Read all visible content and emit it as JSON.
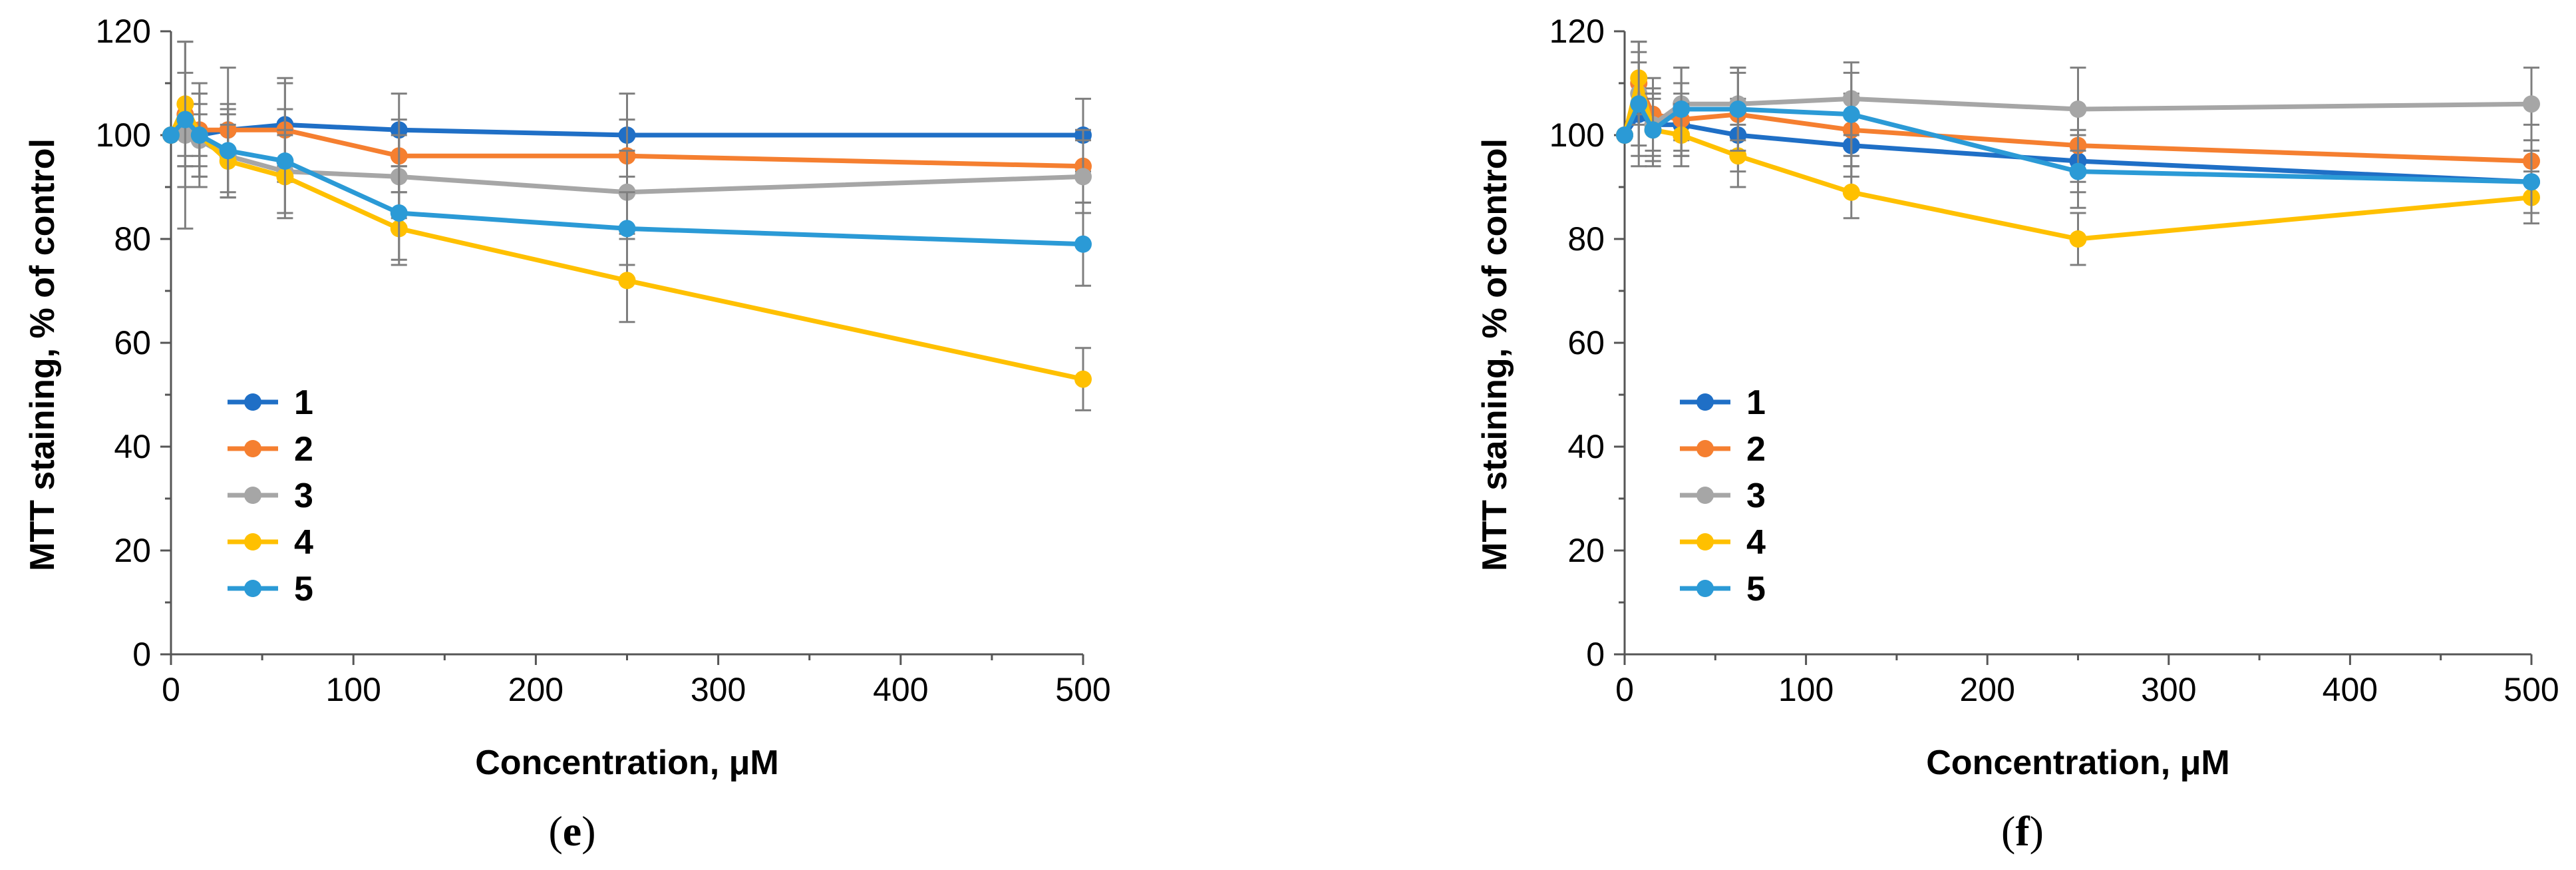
{
  "chart_data": [
    {
      "type": "line",
      "panel_label": "(e)",
      "panel_letter": "e",
      "xlabel": "Concentration, μM",
      "ylabel": "MTT staining, % of control",
      "xlim": [
        0,
        500
      ],
      "ylim": [
        0,
        120
      ],
      "xticks": [
        0,
        100,
        200,
        300,
        400,
        500
      ],
      "yticks": [
        0,
        20,
        40,
        60,
        80,
        100,
        120
      ],
      "legend_position": "lower-left",
      "x": [
        0,
        7.8,
        15.6,
        31.25,
        62.5,
        125,
        250,
        500
      ],
      "series": [
        {
          "name": "1",
          "color": "#1f6fc6",
          "values": [
            100,
            101,
            100,
            101,
            102,
            101,
            100,
            100
          ],
          "errors": [
            0,
            5,
            4,
            4,
            8,
            7,
            8,
            7
          ]
        },
        {
          "name": "2",
          "color": "#f57f30",
          "values": [
            100,
            104,
            101,
            101,
            101,
            96,
            96,
            94
          ],
          "errors": [
            0,
            14,
            9,
            12,
            10,
            7,
            7,
            7
          ]
        },
        {
          "name": "3",
          "color": "#a6a6a6",
          "values": [
            100,
            100,
            99,
            96,
            93,
            92,
            89,
            92
          ],
          "errors": [
            0,
            18,
            9,
            8,
            8,
            8,
            8,
            7
          ]
        },
        {
          "name": "4",
          "color": "#ffc000",
          "values": [
            100,
            106,
            100,
            95,
            92,
            82,
            72,
            53
          ],
          "errors": [
            0,
            12,
            6,
            7,
            8,
            7,
            8,
            6
          ]
        },
        {
          "name": "5",
          "color": "#2b9ad6",
          "values": [
            100,
            103,
            100,
            97,
            95,
            85,
            82,
            79
          ],
          "errors": [
            0,
            9,
            8,
            9,
            10,
            9,
            7,
            8
          ]
        }
      ]
    },
    {
      "type": "line",
      "panel_label": "(f)",
      "panel_letter": "f",
      "xlabel": "Concentration, μM",
      "ylabel": "MTT staining, % of control",
      "xlim": [
        0,
        500
      ],
      "ylim": [
        0,
        120
      ],
      "xticks": [
        0,
        100,
        200,
        300,
        400,
        500
      ],
      "yticks": [
        0,
        20,
        40,
        60,
        80,
        100,
        120
      ],
      "legend_position": "lower-left",
      "x": [
        0,
        7.8,
        15.6,
        31.25,
        62.5,
        125,
        250,
        500
      ],
      "series": [
        {
          "name": "1",
          "color": "#1f6fc6",
          "values": [
            100,
            104,
            102,
            102,
            100,
            98,
            95,
            91
          ],
          "errors": [
            0,
            10,
            6,
            6,
            7,
            6,
            6,
            6
          ]
        },
        {
          "name": "2",
          "color": "#f57f30",
          "values": [
            100,
            110,
            104,
            103,
            104,
            101,
            98,
            95
          ],
          "errors": [
            0,
            8,
            7,
            7,
            8,
            7,
            7,
            7
          ]
        },
        {
          "name": "3",
          "color": "#a6a6a6",
          "values": [
            100,
            108,
            102,
            106,
            106,
            107,
            105,
            106
          ],
          "errors": [
            0,
            10,
            7,
            7,
            7,
            7,
            8,
            7
          ]
        },
        {
          "name": "4",
          "color": "#ffc000",
          "values": [
            100,
            111,
            101,
            100,
            96,
            89,
            80,
            88
          ],
          "errors": [
            0,
            7,
            6,
            6,
            6,
            5,
            5,
            5
          ]
        },
        {
          "name": "5",
          "color": "#2b9ad6",
          "values": [
            100,
            106,
            101,
            105,
            105,
            104,
            93,
            91
          ],
          "errors": [
            0,
            10,
            7,
            8,
            8,
            8,
            7,
            6
          ]
        }
      ]
    }
  ]
}
